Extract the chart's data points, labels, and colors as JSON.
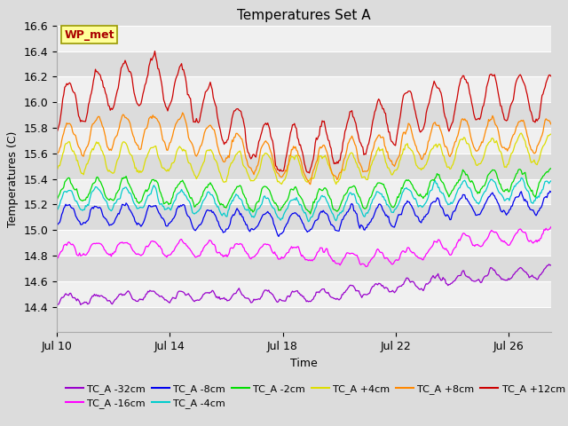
{
  "title": "Temperatures Set A",
  "xlabel": "Time",
  "ylabel": "Temperatures (C)",
  "ylim": [
    14.2,
    16.6
  ],
  "xlim_days": [
    0,
    17.5
  ],
  "x_ticks_labels": [
    "Jul 10",
    "Jul 14",
    "Jul 18",
    "Jul 22",
    "Jul 26"
  ],
  "x_ticks_pos": [
    0,
    4,
    8,
    12,
    16
  ],
  "background_color": "#dcdcdc",
  "plot_bg_color": "#dcdcdc",
  "wp_met_label": "WP_met",
  "wp_met_box_color": "#ffff99",
  "wp_met_text_color": "#aa0000",
  "wp_met_edge_color": "#999900",
  "band_colors": [
    "#dcdcdc",
    "#f0f0f0"
  ],
  "band_y_values": [
    14.2,
    14.4,
    14.6,
    14.8,
    15.0,
    15.2,
    15.4,
    15.6,
    15.8,
    16.0,
    16.2,
    16.4,
    16.6
  ],
  "series": [
    {
      "label": "TC_A -32cm",
      "color": "#9900cc",
      "base": 14.43,
      "trend": 0.013,
      "amplitude": 0.05,
      "diurnal_amp": 0.04,
      "noise": 0.018
    },
    {
      "label": "TC_A -16cm",
      "color": "#ff00ff",
      "base": 14.82,
      "trend": 0.007,
      "amplitude": 0.06,
      "diurnal_amp": 0.055,
      "noise": 0.02
    },
    {
      "label": "TC_A -8cm",
      "color": "#0000ee",
      "base": 15.08,
      "trend": 0.006,
      "amplitude": 0.09,
      "diurnal_amp": 0.08,
      "noise": 0.022
    },
    {
      "label": "TC_A -4cm",
      "color": "#00cccc",
      "base": 15.2,
      "trend": 0.005,
      "amplitude": 0.09,
      "diurnal_amp": 0.085,
      "noise": 0.022
    },
    {
      "label": "TC_A -2cm",
      "color": "#00dd00",
      "base": 15.27,
      "trend": 0.005,
      "amplitude": 0.1,
      "diurnal_amp": 0.09,
      "noise": 0.024
    },
    {
      "label": "TC_A +4cm",
      "color": "#dddd00",
      "base": 15.52,
      "trend": 0.004,
      "amplitude": 0.12,
      "diurnal_amp": 0.11,
      "noise": 0.026
    },
    {
      "label": "TC_A +8cm",
      "color": "#ff8800",
      "base": 15.63,
      "trend": 0.004,
      "amplitude": 0.14,
      "diurnal_amp": 0.13,
      "noise": 0.028
    },
    {
      "label": "TC_A +12cm",
      "color": "#cc0000",
      "base": 15.83,
      "trend": 0.008,
      "amplitude": 0.2,
      "diurnal_amp": 0.18,
      "noise": 0.035
    }
  ],
  "n_points": 500,
  "yticks": [
    14.4,
    14.6,
    14.8,
    15.0,
    15.2,
    15.4,
    15.6,
    15.8,
    16.0,
    16.2,
    16.4,
    16.6
  ],
  "title_fontsize": 11,
  "label_fontsize": 9,
  "tick_fontsize": 9,
  "legend_fontsize": 8
}
